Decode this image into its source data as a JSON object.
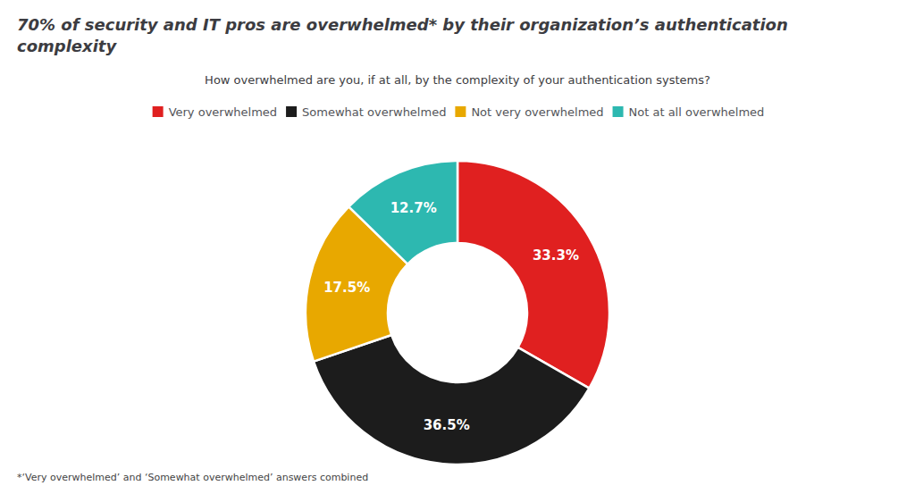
{
  "chart_data": {
    "type": "donut",
    "title": "70% of security and IT pros are overwhelmed* by their organization’s authentication\ncomplexity",
    "subtitle": "How overwhelmed are you, if at all, by the complexity of your authentication systems?",
    "annotations": [
      "*‘Very overwhelmed’ and ‘Somewhat overwhelmed’ answers combined"
    ],
    "categories": [
      "Very overwhelmed",
      "Somewhat overwhelmed",
      "Not very overwhelmed",
      "Not at all overwhelmed"
    ],
    "values": [
      33.3,
      36.5,
      17.5,
      12.7
    ],
    "value_labels": [
      "33.3%",
      "36.5%",
      "17.5%",
      "12.7%"
    ],
    "colors": [
      "#E02020",
      "#1C1C1C",
      "#E8A800",
      "#2DB8B0"
    ],
    "data_labels": true,
    "legend": "top"
  }
}
